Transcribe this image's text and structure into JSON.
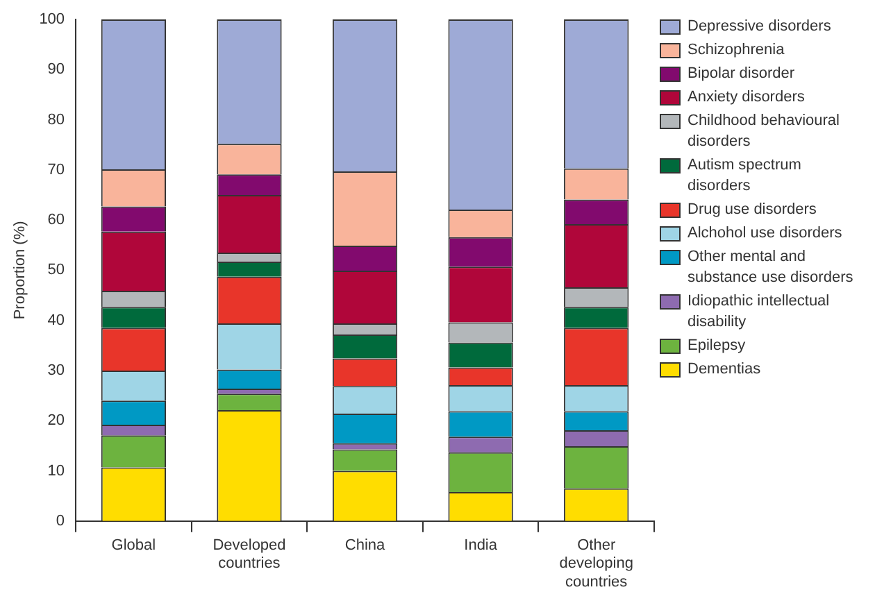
{
  "chart_data": {
    "type": "bar",
    "stacked": true,
    "ylabel": "Proportion (%)",
    "categories": [
      "Global",
      "Developed countries",
      "China",
      "India",
      "Other developing countries"
    ],
    "ylim": [
      0,
      100
    ],
    "yticks": [
      0,
      10,
      20,
      30,
      40,
      50,
      60,
      70,
      80,
      90,
      100
    ],
    "grid": false,
    "legend": "right",
    "series": [
      {
        "name": "Dementias",
        "color": "#ffdd00",
        "values": [
          10.7,
          22.1,
          10.0,
          5.8,
          6.5
        ]
      },
      {
        "name": "Epilepsy",
        "color": "#6db33f",
        "values": [
          6.4,
          3.3,
          4.3,
          7.9,
          8.4
        ]
      },
      {
        "name": "Idiopathic intellectual disability",
        "color": "#8e6bb0",
        "values": [
          2.1,
          1.0,
          1.2,
          3.1,
          3.2
        ]
      },
      {
        "name": "Other mental and substance use disorders",
        "color": "#0099c4",
        "values": [
          4.8,
          3.8,
          5.9,
          5.1,
          3.8
        ]
      },
      {
        "name": "Alchohol use disorders",
        "color": "#9fd5e6",
        "values": [
          6.0,
          9.2,
          5.5,
          5.2,
          5.2
        ]
      },
      {
        "name": "Drug use disorders",
        "color": "#e8352a",
        "values": [
          8.5,
          9.3,
          5.5,
          3.5,
          11.4
        ]
      },
      {
        "name": "Autism spectrum disorders",
        "color": "#006a3c",
        "values": [
          4.2,
          3.0,
          4.8,
          5.0,
          4.2
        ]
      },
      {
        "name": "Childhood behavioural disorders",
        "color": "#b3b7ba",
        "values": [
          3.2,
          1.8,
          2.2,
          4.0,
          3.9
        ]
      },
      {
        "name": "Anxiety disorders",
        "color": "#b0063a",
        "values": [
          11.8,
          11.5,
          10.5,
          11.1,
          12.6
        ]
      },
      {
        "name": "Bipolar disorder",
        "color": "#820a6e",
        "values": [
          5.0,
          4.1,
          5.0,
          5.9,
          4.9
        ]
      },
      {
        "name": "Schizophrenia",
        "color": "#f9b49b",
        "values": [
          7.4,
          6.1,
          14.8,
          5.5,
          6.2
        ]
      },
      {
        "name": "Depressive disorders",
        "color": "#9eaad6",
        "values": [
          29.9,
          24.8,
          30.3,
          37.9,
          29.7
        ]
      }
    ]
  }
}
